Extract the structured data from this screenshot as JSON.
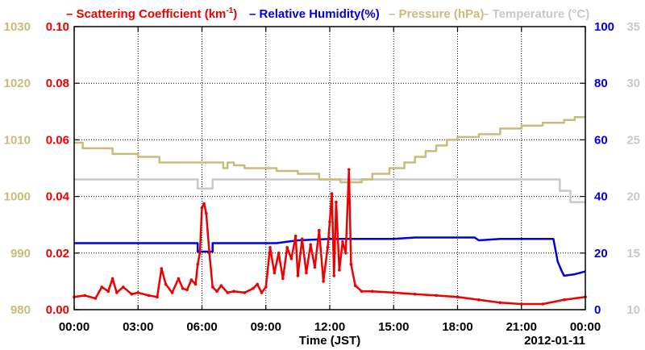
{
  "chart_data": {
    "type": "line",
    "xlabel": "Time (JST)",
    "date_label": "2012-01-11",
    "x_ticks": [
      "00:00",
      "03:00",
      "06:00",
      "09:00",
      "12:00",
      "15:00",
      "18:00",
      "21:00",
      "00:00"
    ],
    "xlim_hours": [
      0,
      24
    ],
    "grid": true,
    "legend_position": "top",
    "axes": {
      "scattering": {
        "ticks": [
          "0.00",
          "0.02",
          "0.04",
          "0.06",
          "0.08",
          "0.10"
        ],
        "ylim": [
          0,
          0.1
        ],
        "side": "left-inner",
        "color": "#ee0000"
      },
      "pressure": {
        "ticks": [
          "980",
          "990",
          "1000",
          "1010",
          "1020",
          "1030"
        ],
        "ylim": [
          980,
          1030
        ],
        "side": "left-outer",
        "color": "#c8bc7a"
      },
      "humidity": {
        "ticks": [
          "0",
          "20",
          "40",
          "60",
          "80",
          "100"
        ],
        "ylim": [
          0,
          100
        ],
        "side": "right-inner",
        "color": "#0000dd"
      },
      "temperature": {
        "ticks": [
          "10",
          "15",
          "20",
          "25",
          "30",
          "35"
        ],
        "ylim": [
          10,
          35
        ],
        "side": "right-outer",
        "color": "#c8c8c8"
      }
    },
    "legend": [
      {
        "name": "Scattering Coefficient (km",
        "sup": "-1",
        "tail": ")",
        "color": "#ee0000"
      },
      {
        "name": "Relative Humidity(%)",
        "sup": "",
        "tail": "",
        "color": "#0000dd"
      },
      {
        "name": "Pressure (hPa)",
        "sup": "",
        "tail": "",
        "color": "#c8bc7a"
      },
      {
        "name": "Temperature (°C)",
        "sup": "",
        "tail": "",
        "color": "#c8c8c8"
      }
    ],
    "series": [
      {
        "name": "Scattering Coefficient (km-1)",
        "axis": "scattering",
        "color": "#ee0000",
        "x": [
          0,
          0.5,
          1.0,
          1.3,
          1.6,
          1.8,
          2.0,
          2.3,
          2.7,
          3.0,
          3.5,
          3.9,
          4.1,
          4.3,
          4.6,
          4.9,
          5.1,
          5.3,
          5.5,
          5.7,
          5.8,
          5.9,
          6.0,
          6.1,
          6.2,
          6.35,
          6.5,
          6.7,
          6.9,
          7.2,
          7.5,
          8.0,
          8.4,
          8.6,
          8.8,
          9.0,
          9.2,
          9.4,
          9.6,
          9.8,
          10.0,
          10.2,
          10.4,
          10.5,
          10.7,
          10.9,
          11.1,
          11.3,
          11.5,
          11.7,
          11.9,
          12.0,
          12.1,
          12.2,
          12.3,
          12.45,
          12.6,
          12.75,
          12.9,
          13.0,
          13.2,
          13.5,
          14.0,
          15.0,
          16.0,
          17.0,
          18.0,
          19.0,
          20.0,
          21.0,
          22.0,
          23.0,
          24.0
        ],
        "y": [
          0.0045,
          0.005,
          0.004,
          0.008,
          0.0065,
          0.011,
          0.006,
          0.008,
          0.0055,
          0.006,
          0.005,
          0.0045,
          0.0145,
          0.009,
          0.006,
          0.011,
          0.0075,
          0.007,
          0.0105,
          0.009,
          0.016,
          0.02,
          0.036,
          0.0375,
          0.034,
          0.02,
          0.008,
          0.0065,
          0.0085,
          0.006,
          0.0065,
          0.006,
          0.0075,
          0.009,
          0.006,
          0.008,
          0.022,
          0.013,
          0.02,
          0.011,
          0.022,
          0.018,
          0.026,
          0.012,
          0.025,
          0.013,
          0.023,
          0.015,
          0.028,
          0.01,
          0.022,
          0.031,
          0.041,
          0.012,
          0.038,
          0.014,
          0.024,
          0.02,
          0.0495,
          0.016,
          0.0085,
          0.0065,
          0.0065,
          0.006,
          0.0055,
          0.005,
          0.0045,
          0.0035,
          0.0025,
          0.002,
          0.002,
          0.0035,
          0.0045
        ]
      },
      {
        "name": "Relative Humidity(%)",
        "axis": "humidity",
        "color": "#0000dd",
        "x": [
          0,
          5.8,
          5.8,
          6.5,
          6.5,
          9.5,
          10.5,
          12.0,
          15.0,
          16.0,
          18.0,
          18.8,
          19.0,
          20.0,
          21.0,
          22.5,
          22.7,
          22.9,
          23.0,
          23.5,
          24.0
        ],
        "y": [
          23.5,
          23.5,
          20.5,
          20.5,
          23.5,
          23.5,
          24.5,
          25,
          25,
          25.5,
          25.5,
          25.5,
          24.5,
          25,
          25,
          25,
          17,
          13.5,
          12,
          12.5,
          13.5
        ]
      },
      {
        "name": "Pressure (hPa)",
        "axis": "pressure",
        "color": "#c8bc7a",
        "x": [
          0,
          0.4,
          0.4,
          1.8,
          1.8,
          3.0,
          3.0,
          4.0,
          4.0,
          7.0,
          7.0,
          7.2,
          7.2,
          7.5,
          7.5,
          8.0,
          8.0,
          9.5,
          9.5,
          10.5,
          10.5,
          11.5,
          11.5,
          12.5,
          12.5,
          13.5,
          13.5,
          14.0,
          14.0,
          14.8,
          14.8,
          15.5,
          15.5,
          16.0,
          16.0,
          16.5,
          16.5,
          17.0,
          17.0,
          17.5,
          17.5,
          18.0,
          18.0,
          19.0,
          19.0,
          20.0,
          20.0,
          21.0,
          21.0,
          22.0,
          22.0,
          23.0,
          23.0,
          23.5,
          23.5,
          24.0
        ],
        "y": [
          1009.5,
          1009.5,
          1008.5,
          1008.5,
          1007.5,
          1007.5,
          1007,
          1007,
          1006,
          1006,
          1005,
          1005,
          1006,
          1006,
          1005.5,
          1005.5,
          1005,
          1005,
          1004.5,
          1004.5,
          1004,
          1004,
          1003,
          1003,
          1002.5,
          1002.5,
          1003,
          1003,
          1004,
          1004,
          1005,
          1005,
          1006,
          1006,
          1007,
          1007,
          1008,
          1008,
          1009,
          1009,
          1010,
          1010,
          1010.5,
          1010.5,
          1011,
          1011,
          1012,
          1012,
          1012.5,
          1012.5,
          1013,
          1013,
          1013.5,
          1013.5,
          1014,
          1014
        ]
      },
      {
        "name": "Temperature (°C)",
        "axis": "temperature",
        "color": "#c8c8c8",
        "x": [
          0,
          5.8,
          5.8,
          6.5,
          6.5,
          11.0,
          22.8,
          22.8,
          23.3,
          23.3,
          24.0
        ],
        "y": [
          21.5,
          21.5,
          20.7,
          20.7,
          21.5,
          21.5,
          21.5,
          20.5,
          20.5,
          19.5,
          19.5
        ]
      }
    ]
  }
}
